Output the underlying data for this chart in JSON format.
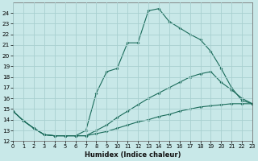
{
  "bg_color": "#c8e8e8",
  "grid_color": "#a8d0d0",
  "line_color": "#1a6b5a",
  "xlabel": "Humidex (Indice chaleur)",
  "xlim": [
    0,
    23
  ],
  "ylim": [
    12,
    25
  ],
  "xticks": [
    0,
    1,
    2,
    3,
    4,
    5,
    6,
    7,
    8,
    9,
    10,
    11,
    12,
    13,
    14,
    15,
    16,
    17,
    18,
    19,
    20,
    21,
    22,
    23
  ],
  "yticks": [
    12,
    13,
    14,
    15,
    16,
    17,
    18,
    19,
    20,
    21,
    22,
    23,
    24
  ],
  "series": [
    {
      "x": [
        0,
        1,
        2,
        3,
        4,
        5,
        6,
        7,
        8,
        9,
        10,
        11,
        12,
        13,
        14,
        15,
        16,
        17,
        18,
        19,
        20,
        21,
        22,
        23
      ],
      "y": [
        14.8,
        13.9,
        13.2,
        12.6,
        12.5,
        12.5,
        12.5,
        12.5,
        12.7,
        12.9,
        13.2,
        13.5,
        13.8,
        14.0,
        14.3,
        14.5,
        14.8,
        15.0,
        15.2,
        15.3,
        15.4,
        15.5,
        15.5,
        15.5
      ]
    },
    {
      "x": [
        0,
        1,
        2,
        3,
        4,
        5,
        6,
        7,
        8,
        9,
        10,
        11,
        12,
        13,
        14,
        15,
        16,
        17,
        18,
        19,
        20,
        21,
        22,
        23
      ],
      "y": [
        14.8,
        13.9,
        13.2,
        12.6,
        12.5,
        12.5,
        12.5,
        12.5,
        13.0,
        13.5,
        14.2,
        14.8,
        15.4,
        16.0,
        16.5,
        17.0,
        17.5,
        18.0,
        18.3,
        18.5,
        17.5,
        16.8,
        16.0,
        15.5
      ]
    },
    {
      "x": [
        0,
        1,
        2,
        3,
        4,
        5,
        6,
        7,
        8,
        9,
        10,
        11,
        12,
        13,
        14,
        15,
        16,
        17,
        18,
        19,
        20,
        21,
        22,
        23
      ],
      "y": [
        14.8,
        13.9,
        13.2,
        12.6,
        12.5,
        12.5,
        12.5,
        13.0,
        16.5,
        18.5,
        18.8,
        21.2,
        21.2,
        24.2,
        24.4,
        23.2,
        22.6,
        22.0,
        21.5,
        20.4,
        18.8,
        17.0,
        15.8,
        15.5
      ]
    }
  ]
}
